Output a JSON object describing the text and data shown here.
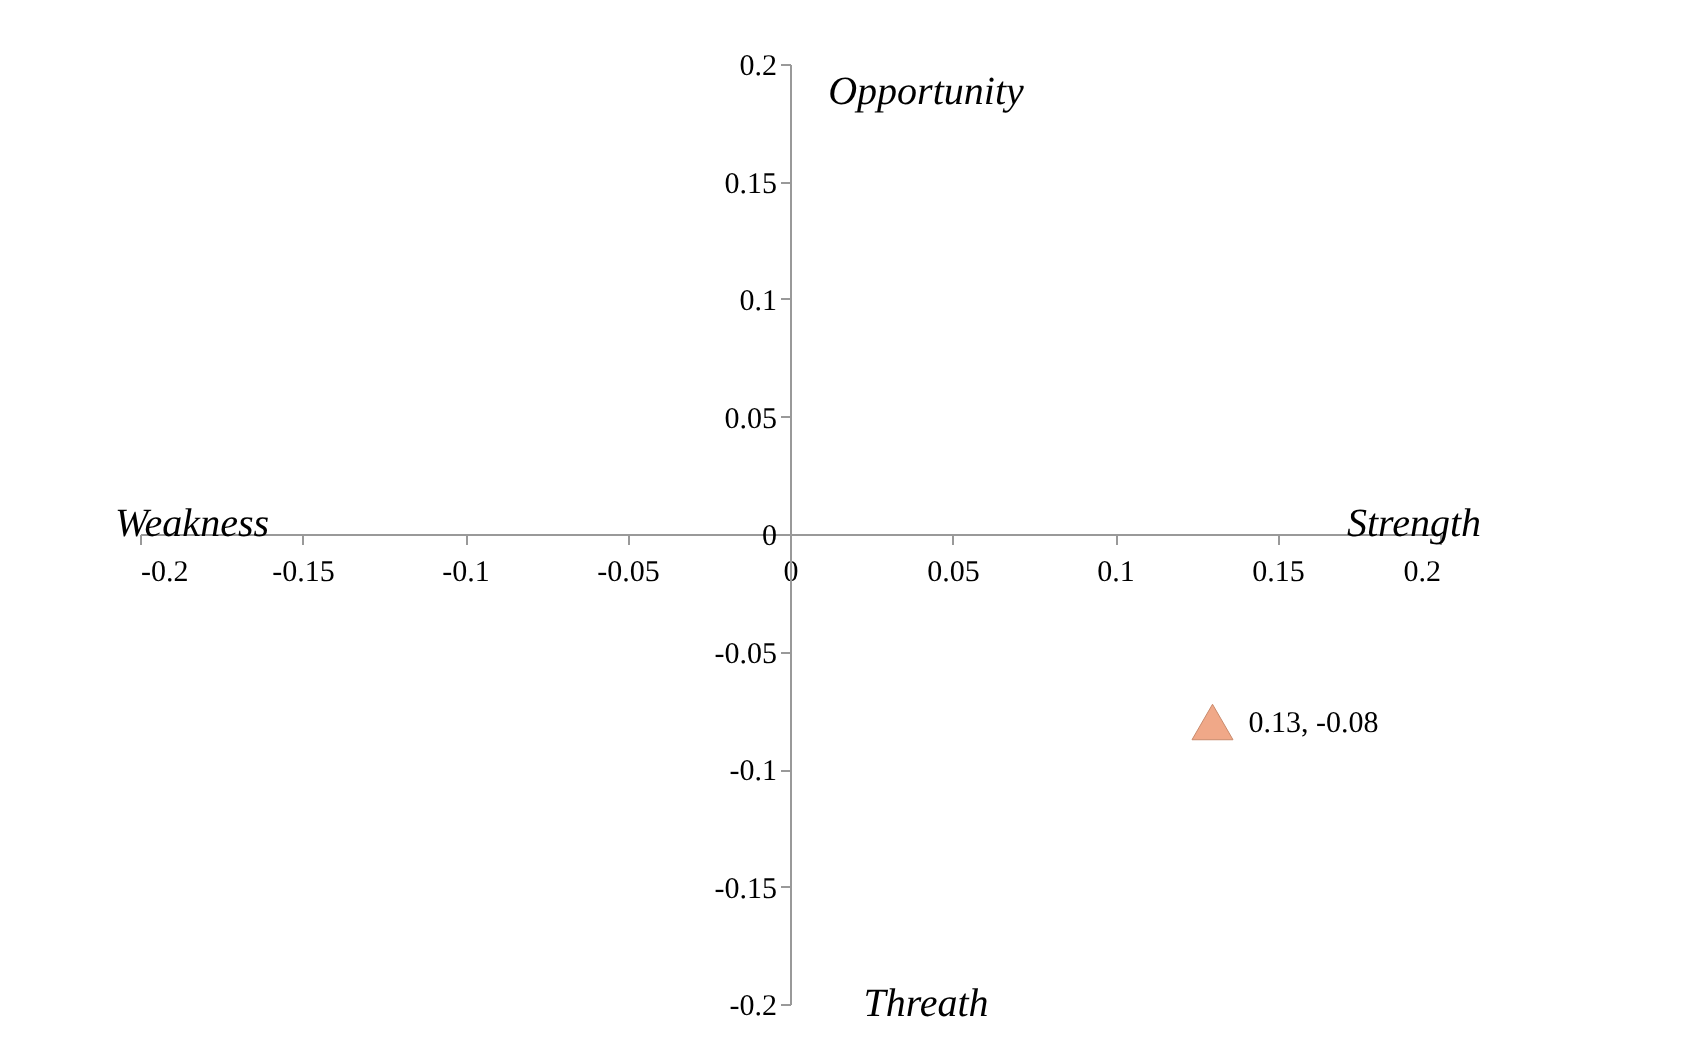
{
  "chart_data": {
    "type": "scatter",
    "x": [
      0.13
    ],
    "values": [
      -0.08
    ],
    "color": "#f0a888",
    "marker": "triangle",
    "value_labels": [
      "0.13, -0.08"
    ],
    "xlim": [
      -0.2,
      0.2
    ],
    "xticks": [
      -0.2,
      -0.15,
      -0.1,
      -0.05,
      0,
      0.05,
      0.1,
      0.15,
      0.2
    ],
    "ylim": [
      -0.2,
      0.2
    ],
    "yticks": [
      -0.2,
      -0.15,
      -0.1,
      -0.05,
      0,
      0.05,
      0.1,
      0.15,
      0.2
    ],
    "grid": false,
    "annotations": [
      "Opportunity",
      "Weakness",
      "Strength",
      "Threath"
    ]
  }
}
